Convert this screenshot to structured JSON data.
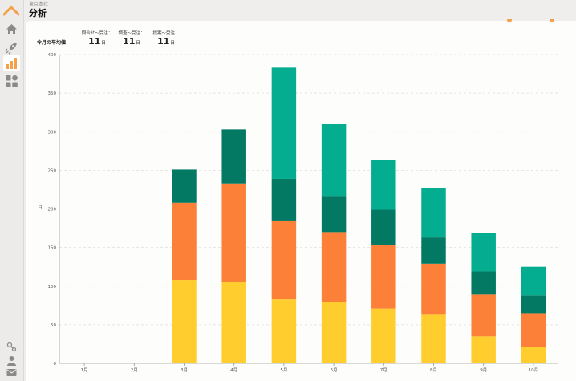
{
  "header": {
    "breadcrumb": "東京本社",
    "title": "分析"
  },
  "summary": {
    "title": "今月の平均値",
    "stats": [
      {
        "label": "問合せ〜受注：",
        "value": "11",
        "unit": "日"
      },
      {
        "label": "調査〜受注：",
        "value": "11",
        "unit": "日"
      },
      {
        "label": "提案〜受注：",
        "value": "11",
        "unit": "日"
      }
    ]
  },
  "colors": {
    "accent": "#f5a04a",
    "series": [
      "#ffcd2e",
      "#fc8037",
      "#037963",
      "#04ad8f"
    ]
  },
  "sidebar": {
    "items": [
      {
        "icon": "home-icon"
      },
      {
        "icon": "rocket-icon"
      },
      {
        "icon": "bar-chart-icon",
        "active": true
      },
      {
        "icon": "grid-icon"
      }
    ],
    "bottom": [
      {
        "icon": "link-icon"
      },
      {
        "icon": "user-icon"
      },
      {
        "icon": "mail-icon"
      }
    ]
  },
  "chart_data": {
    "type": "bar",
    "stacked": true,
    "ylabel": "日",
    "ylim": [
      0,
      400
    ],
    "yticks": [
      0,
      50,
      100,
      150,
      200,
      250,
      300,
      350,
      400
    ],
    "categories": [
      "1月",
      "2月",
      "3月",
      "4月",
      "5月",
      "6月",
      "7月",
      "8月",
      "9月",
      "10月"
    ],
    "series": [
      {
        "values": [
          0,
          0,
          108,
          106,
          83,
          80,
          71,
          63,
          35,
          21
        ]
      },
      {
        "values": [
          0,
          0,
          100,
          127,
          102,
          90,
          82,
          66,
          54,
          44
        ]
      },
      {
        "values": [
          0,
          0,
          43,
          70,
          54,
          47,
          46,
          34,
          30,
          23
        ]
      },
      {
        "values": [
          0,
          0,
          0,
          0,
          144,
          93,
          64,
          64,
          50,
          37
        ]
      }
    ],
    "grid": true
  }
}
